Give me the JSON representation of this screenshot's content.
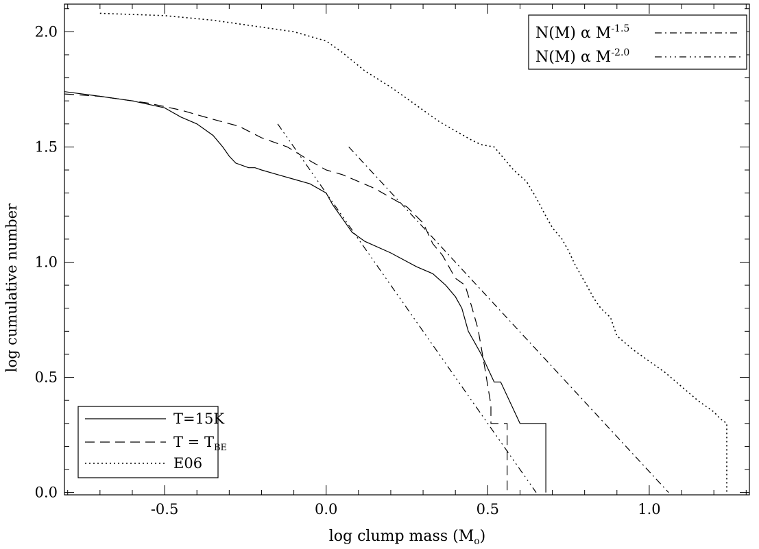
{
  "chart_data": {
    "type": "line",
    "xlabel_main": "log clump mass (M",
    "xlabel_sub": "o",
    "xlabel_close": ")",
    "ylabel": "log cumulative number",
    "xlim": [
      -0.81,
      1.31
    ],
    "ylim": [
      -0.01,
      2.12
    ],
    "xticks": [
      {
        "value": -0.5,
        "label": "-0.5"
      },
      {
        "value": 0.0,
        "label": "0.0"
      },
      {
        "value": 0.5,
        "label": "0.5"
      },
      {
        "value": 1.0,
        "label": "1.0"
      }
    ],
    "yticks": [
      {
        "value": 0.0,
        "label": "0.0"
      },
      {
        "value": 0.5,
        "label": "0.5"
      },
      {
        "value": 1.0,
        "label": "1.0"
      },
      {
        "value": 1.5,
        "label": "1.5"
      },
      {
        "value": 2.0,
        "label": "2.0"
      }
    ],
    "legend_top_right": [
      {
        "text": "N(M) α M",
        "sup": "-1.5",
        "style": "dashdot"
      },
      {
        "text": "N(M) α M",
        "sup": "-2.0",
        "style": "dashdotdotdot"
      }
    ],
    "legend_bottom_left": [
      {
        "text": "T=15K",
        "sub": "",
        "style": "solid"
      },
      {
        "text": "T = T",
        "sub": "BE",
        "style": "dashed"
      },
      {
        "text": "E06",
        "sub": "",
        "style": "dotted"
      }
    ],
    "series": [
      {
        "name": "T=15K",
        "style": "solid",
        "x": [
          -0.81,
          -0.7,
          -0.6,
          -0.5,
          -0.45,
          -0.4,
          -0.35,
          -0.32,
          -0.3,
          -0.28,
          -0.26,
          -0.24,
          -0.22,
          -0.2,
          -0.15,
          -0.1,
          -0.05,
          0.0,
          0.02,
          0.05,
          0.08,
          0.12,
          0.2,
          0.28,
          0.33,
          0.37,
          0.4,
          0.42,
          0.44,
          0.46,
          0.48,
          0.5,
          0.52,
          0.54,
          0.6,
          0.68,
          0.68
        ],
        "y": [
          1.74,
          1.72,
          1.7,
          1.67,
          1.63,
          1.6,
          1.55,
          1.5,
          1.46,
          1.43,
          1.42,
          1.41,
          1.41,
          1.4,
          1.38,
          1.36,
          1.34,
          1.3,
          1.25,
          1.19,
          1.13,
          1.09,
          1.04,
          0.98,
          0.95,
          0.9,
          0.85,
          0.8,
          0.7,
          0.65,
          0.6,
          0.54,
          0.48,
          0.48,
          0.3,
          0.3,
          0.0
        ]
      },
      {
        "name": "T = TBE",
        "style": "dashed",
        "x": [
          -0.81,
          -0.7,
          -0.55,
          -0.45,
          -0.35,
          -0.27,
          -0.2,
          -0.12,
          -0.05,
          0.0,
          0.05,
          0.1,
          0.15,
          0.2,
          0.25,
          0.3,
          0.33,
          0.36,
          0.38,
          0.4,
          0.43,
          0.45,
          0.47,
          0.49,
          0.51,
          0.51,
          0.56,
          0.56
        ],
        "y": [
          1.73,
          1.72,
          1.69,
          1.66,
          1.62,
          1.59,
          1.54,
          1.5,
          1.44,
          1.4,
          1.38,
          1.35,
          1.32,
          1.28,
          1.24,
          1.17,
          1.08,
          1.03,
          0.98,
          0.93,
          0.9,
          0.81,
          0.71,
          0.55,
          0.38,
          0.3,
          0.3,
          0.0
        ]
      },
      {
        "name": "E06",
        "style": "dotted",
        "x": [
          -0.7,
          -0.5,
          -0.35,
          -0.2,
          -0.1,
          -0.05,
          0.0,
          0.05,
          0.12,
          0.2,
          0.28,
          0.35,
          0.4,
          0.45,
          0.48,
          0.52,
          0.55,
          0.58,
          0.62,
          0.65,
          0.68,
          0.7,
          0.73,
          0.75,
          0.77,
          0.79,
          0.81,
          0.83,
          0.85,
          0.88,
          0.9,
          0.95,
          1.0,
          1.05,
          1.1,
          1.15,
          1.2,
          1.22,
          1.24,
          1.24
        ],
        "y": [
          2.08,
          2.07,
          2.05,
          2.02,
          2.0,
          1.98,
          1.96,
          1.91,
          1.83,
          1.76,
          1.68,
          1.61,
          1.57,
          1.53,
          1.51,
          1.5,
          1.45,
          1.4,
          1.35,
          1.28,
          1.2,
          1.15,
          1.1,
          1.05,
          0.99,
          0.94,
          0.89,
          0.84,
          0.8,
          0.76,
          0.68,
          0.62,
          0.57,
          0.52,
          0.46,
          0.4,
          0.35,
          0.32,
          0.3,
          0.0
        ]
      },
      {
        "name": "N(M) α M-1.5",
        "style": "dashdot",
        "x": [
          0.07,
          1.06
        ],
        "y": [
          1.5,
          0.0
        ]
      },
      {
        "name": "N(M) α M-2.0",
        "style": "dashdotdotdot",
        "x": [
          -0.15,
          0.65
        ],
        "y": [
          1.6,
          0.0
        ]
      }
    ]
  }
}
